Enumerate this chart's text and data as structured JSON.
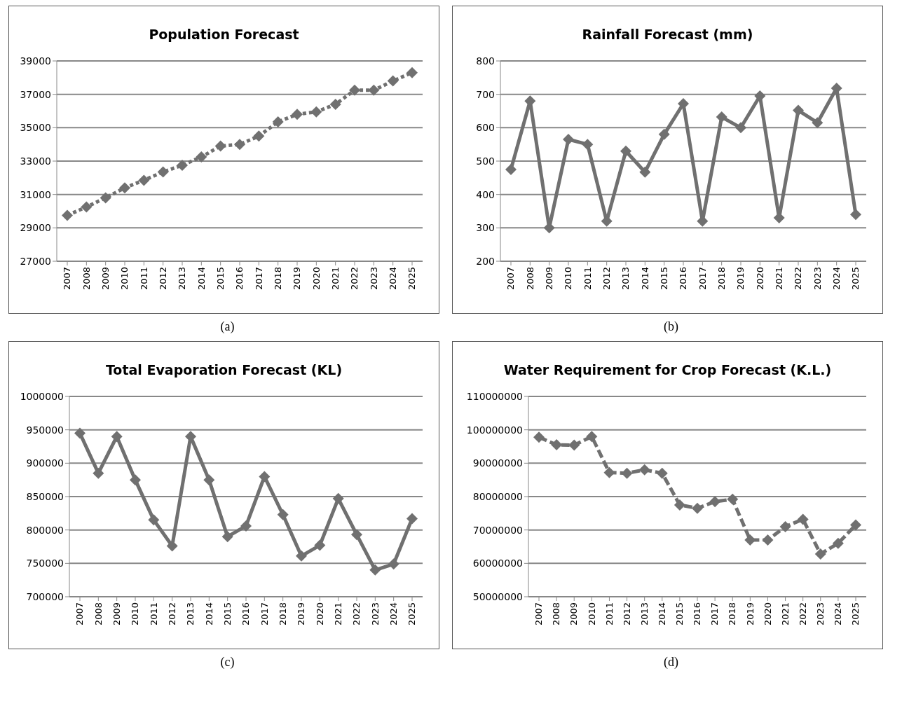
{
  "chart_data": [
    {
      "type": "line",
      "title": "Population Forecast",
      "categories": [
        "2007",
        "2008",
        "2009",
        "2010",
        "2011",
        "2012",
        "2013",
        "2014",
        "2015",
        "2016",
        "2017",
        "2018",
        "2019",
        "2020",
        "2021",
        "2022",
        "2023",
        "2024",
        "2025"
      ],
      "series": [
        {
          "color": "#707070",
          "values": [
            29750,
            30250,
            30800,
            31400,
            31850,
            32350,
            32750,
            33250,
            33900,
            34000,
            34500,
            35350,
            35800,
            35950,
            36400,
            37250,
            37250,
            37800,
            38300
          ]
        }
      ],
      "ylim": [
        27000,
        39000
      ],
      "yticks": [
        27000,
        29000,
        31000,
        33000,
        35000,
        37000,
        39000
      ],
      "grid": "y",
      "marker": "diamond",
      "line_style": "dotted",
      "annotations": [
        "(a)"
      ]
    },
    {
      "type": "line",
      "title": "Rainfall Forecast (mm)",
      "categories": [
        "2007",
        "2008",
        "2009",
        "2010",
        "2011",
        "2012",
        "2013",
        "2014",
        "2015",
        "2016",
        "2017",
        "2018",
        "2019",
        "2020",
        "2021",
        "2022",
        "2023",
        "2024",
        "2025"
      ],
      "series": [
        {
          "color": "#707070",
          "values": [
            475,
            680,
            300,
            565,
            550,
            320,
            530,
            467,
            580,
            672,
            320,
            632,
            600,
            695,
            330,
            652,
            615,
            718,
            340
          ]
        }
      ],
      "ylim": [
        200,
        800
      ],
      "yticks": [
        200,
        300,
        400,
        500,
        600,
        700,
        800
      ],
      "grid": "y",
      "marker": "diamond",
      "line_style": "solid",
      "annotations": [
        "(b)"
      ]
    },
    {
      "type": "line",
      "title": "Total Evaporation Forecast (KL)",
      "categories": [
        "2007",
        "2008",
        "2009",
        "2010",
        "2011",
        "2012",
        "2013",
        "2014",
        "2015",
        "2016",
        "2017",
        "2018",
        "2019",
        "2020",
        "2021",
        "2022",
        "2023",
        "2024",
        "2025"
      ],
      "series": [
        {
          "color": "#707070",
          "values": [
            945000,
            885000,
            940000,
            875000,
            815000,
            776000,
            940000,
            875000,
            790000,
            806000,
            880000,
            823000,
            761000,
            777000,
            847000,
            793000,
            740000,
            749000,
            817000
          ]
        }
      ],
      "ylim": [
        700000,
        1000000
      ],
      "yticks": [
        700000,
        750000,
        800000,
        850000,
        900000,
        950000,
        1000000
      ],
      "grid": "y",
      "marker": "diamond",
      "line_style": "solid",
      "annotations": [
        "(c)"
      ]
    },
    {
      "type": "line",
      "title": "Water Requirement for Crop Forecast (K.L.)",
      "categories": [
        "2007",
        "2008",
        "2009",
        "2010",
        "2011",
        "2012",
        "2013",
        "2014",
        "2015",
        "2016",
        "2017",
        "2018",
        "2019",
        "2020",
        "2021",
        "2022",
        "2023",
        "2024",
        "2025"
      ],
      "series": [
        {
          "color": "#707070",
          "values": [
            97800000,
            95500000,
            95400000,
            98000000,
            87200000,
            87000000,
            88000000,
            87000000,
            77500000,
            76500000,
            78500000,
            79200000,
            67000000,
            67000000,
            71000000,
            73200000,
            62800000,
            66000000,
            71500000
          ]
        }
      ],
      "ylim": [
        50000000,
        110000000
      ],
      "yticks": [
        50000000,
        60000000,
        70000000,
        80000000,
        90000000,
        100000000,
        110000000
      ],
      "grid": "y",
      "marker": "diamond",
      "line_style": "dashed",
      "annotations": [
        "(d)"
      ]
    }
  ]
}
